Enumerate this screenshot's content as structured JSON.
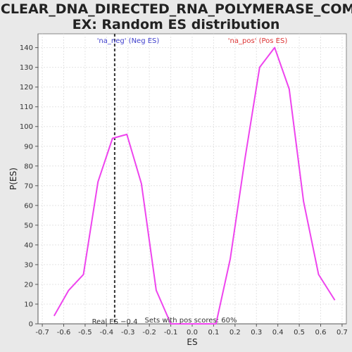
{
  "chart_data": {
    "type": "line",
    "title_lines": [
      "NUCLEAR_DNA_DIRECTED_RNA_POLYMERASE_COMPL",
      "EX: Random ES distribution"
    ],
    "xlabel": "ES",
    "ylabel": "P(ES)",
    "xlim": [
      -0.72,
      0.72
    ],
    "ylim": [
      0,
      147
    ],
    "x_ticks": [
      -0.7,
      -0.6,
      -0.5,
      -0.4,
      -0.3,
      -0.2,
      -0.1,
      0.0,
      0.1,
      0.2,
      0.3,
      0.4,
      0.5,
      0.6,
      0.7
    ],
    "x_tick_labels": [
      "-0.7",
      "-0.6",
      "-0.5",
      "-0.4",
      "-0.3",
      "-0.2",
      "-0.1",
      "0.0",
      "0.1",
      "0.2",
      "0.3",
      "0.4",
      "0.5",
      "0.6",
      "0.7"
    ],
    "y_ticks": [
      0,
      10,
      20,
      30,
      40,
      50,
      60,
      70,
      80,
      90,
      100,
      110,
      120,
      130,
      140
    ],
    "y_tick_labels": [
      "0",
      "10",
      "20",
      "30",
      "40",
      "50",
      "60",
      "70",
      "80",
      "90",
      "100",
      "110",
      "120",
      "130",
      "140"
    ],
    "grid": true,
    "series": [
      {
        "color": "#ee44ee",
        "points": [
          {
            "x": -0.645,
            "y": 4
          },
          {
            "x": -0.577,
            "y": 17
          },
          {
            "x": -0.508,
            "y": 25
          },
          {
            "x": -0.44,
            "y": 72
          },
          {
            "x": -0.372,
            "y": 94
          },
          {
            "x": -0.305,
            "y": 96
          },
          {
            "x": -0.237,
            "y": 71
          },
          {
            "x": -0.168,
            "y": 17
          },
          {
            "x": -0.1,
            "y": 0
          },
          {
            "x": 0.111,
            "y": 0
          },
          {
            "x": 0.178,
            "y": 33
          },
          {
            "x": 0.247,
            "y": 84
          },
          {
            "x": 0.315,
            "y": 130
          },
          {
            "x": 0.385,
            "y": 140
          },
          {
            "x": 0.453,
            "y": 119
          },
          {
            "x": 0.52,
            "y": 62
          },
          {
            "x": 0.59,
            "y": 25
          },
          {
            "x": 0.666,
            "y": 12
          }
        ]
      }
    ],
    "reference_line": {
      "x": -0.362,
      "style": "dashed",
      "color": "#333333"
    },
    "annotations": {
      "neg_label": {
        "text": "'na_neg' (Neg ES)",
        "color": "#3f3fcc"
      },
      "pos_label": {
        "text": "'na_pos' (Pos ES)",
        "color": "#dd3333"
      },
      "real_es": {
        "text": "Real ES −0.4",
        "color": "#333333"
      },
      "pos_scores": {
        "text": "Sets with pos scores: 60%",
        "color": "#333333"
      }
    }
  }
}
